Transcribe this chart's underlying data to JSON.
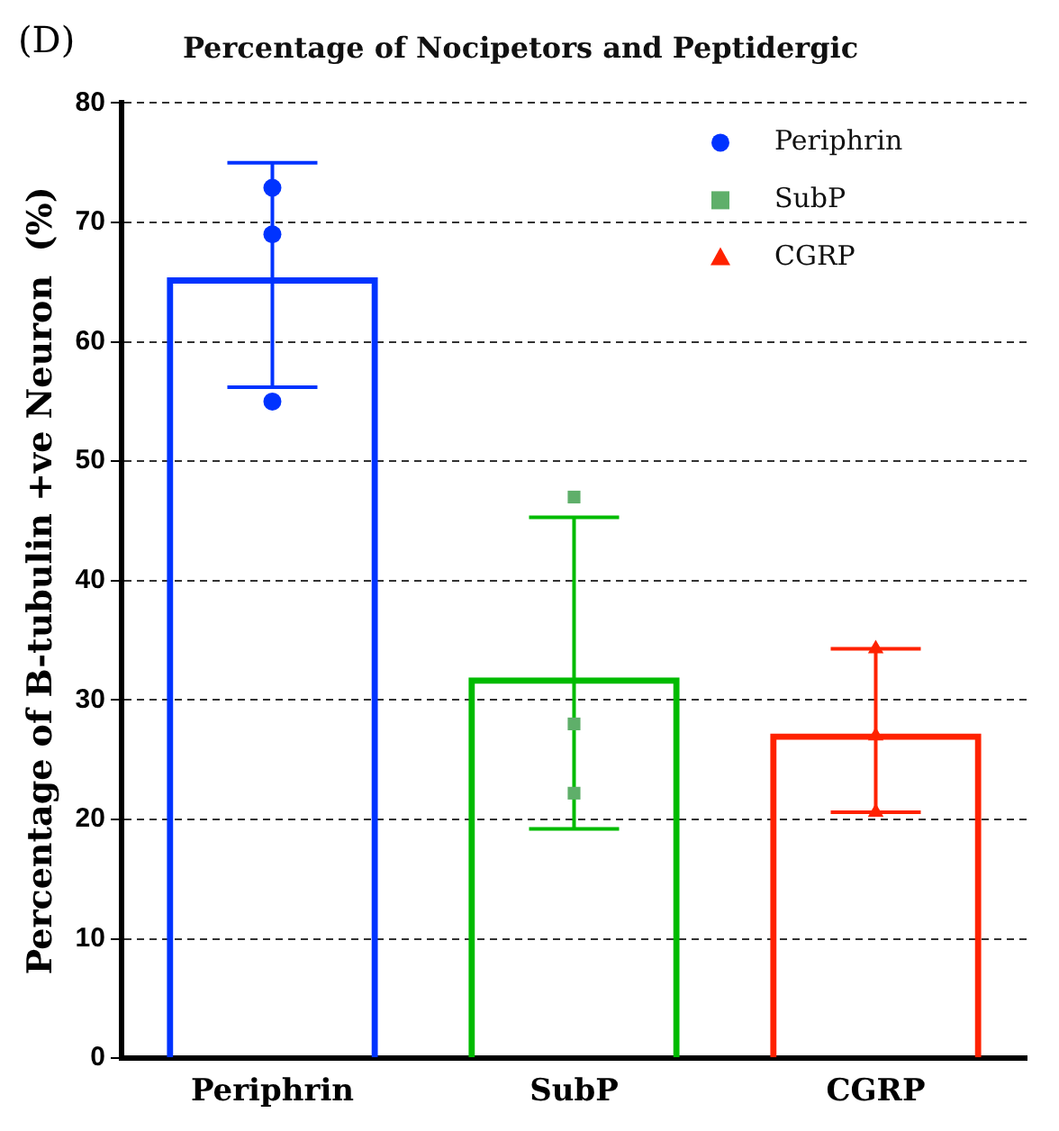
{
  "chart_data": {
    "type": "bar",
    "title": "Percentage of Nocipetors and Peptidergic",
    "ylabel": "Percentage of B-tubulin +ve Neuron  (%)",
    "annotations": [
      "(D)"
    ],
    "categories": [
      "Periphrin",
      "SubP",
      "CGRP"
    ],
    "colors": [
      "#0033ff",
      "#00bb00",
      "#ff2200"
    ],
    "values": [
      65.4,
      31.9,
      27.2
    ],
    "errors": [
      [
        56.2,
        75.0
      ],
      [
        19.2,
        45.3
      ],
      [
        20.6,
        34.3
      ]
    ],
    "series": [
      {
        "type": "scatter",
        "name": "Periphrin",
        "color": "#0033ff",
        "marker": "circle",
        "x": [
          "Periphrin",
          "Periphrin",
          "Periphrin"
        ],
        "values": [
          72.9,
          69.0,
          55.0
        ]
      },
      {
        "type": "scatter",
        "name": "SubP",
        "color": "#5faf6a",
        "marker": "square",
        "x": [
          "SubP",
          "SubP",
          "SubP"
        ],
        "values": [
          47.0,
          28.0,
          22.2
        ]
      },
      {
        "type": "scatter",
        "name": "CGRP",
        "color": "#ff2200",
        "marker": "triangle",
        "x": [
          "CGRP",
          "CGRP",
          "CGRP"
        ],
        "values": [
          34.3,
          27.0,
          20.6
        ]
      }
    ],
    "ylim": [
      0,
      80
    ],
    "yticks": [
      0,
      10,
      20,
      30,
      40,
      50,
      60,
      70,
      80
    ],
    "grid": "y",
    "legend": "top right"
  }
}
